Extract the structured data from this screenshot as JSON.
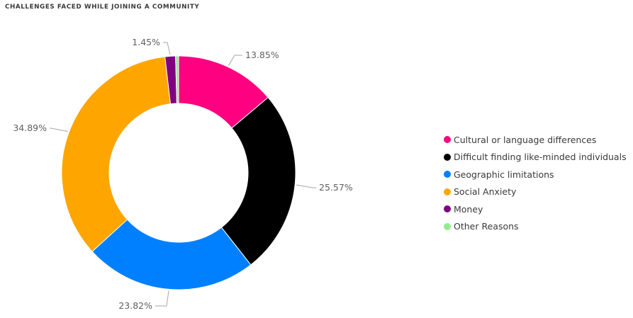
{
  "chart_data": {
    "type": "pie",
    "title": "CHALLENGES FACED WHILE JOINING A COMMUNITY",
    "legend_position": "right",
    "series": [
      {
        "name": "Cultural or language differences",
        "value": 13.85,
        "label": "13.85%",
        "color": "#FF0080"
      },
      {
        "name": "Difficult finding like-minded individuals",
        "value": 25.57,
        "label": "25.57%",
        "color": "#000000"
      },
      {
        "name": "Geographic limitations",
        "value": 23.82,
        "label": "23.82%",
        "color": "#0080FF"
      },
      {
        "name": "Social Anxiety",
        "value": 34.89,
        "label": "34.89%",
        "color": "#FFA500"
      },
      {
        "name": "Money",
        "value": 1.45,
        "label": "1.45%",
        "color": "#800080"
      },
      {
        "name": "Other Reasons",
        "value": 0.42,
        "label": "",
        "color": "#90EE90"
      }
    ]
  }
}
